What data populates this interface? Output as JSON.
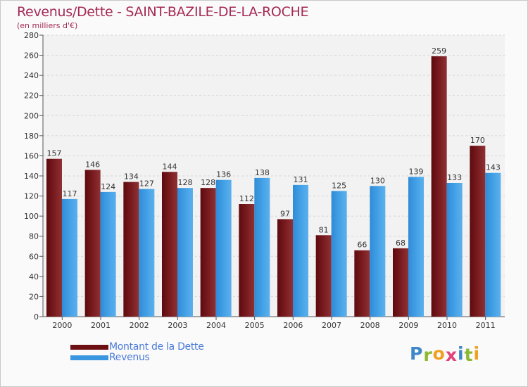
{
  "title": "Revenus/Dette - SAINT-BAZILE-DE-LA-ROCHE",
  "subtitle": "(en milliers d'€)",
  "colors": {
    "dette": "#7a1a1e",
    "revenus": "#3a96de",
    "title": "#a52a55",
    "legend_text": "#4a7bd8"
  },
  "legend": [
    {
      "label": "Montant de la Dette",
      "color": "#6b0f12"
    },
    {
      "label": "Revenus",
      "color": "#3a96de"
    }
  ],
  "logo": {
    "letters": [
      {
        "char": "P",
        "color": "#3e87c9"
      },
      {
        "char": "r",
        "color": "#8cb832"
      },
      {
        "char": "o",
        "color": "#f0a020"
      },
      {
        "char": "x",
        "color": "#e0427a"
      },
      {
        "char": "i",
        "color": "#3e87c9"
      },
      {
        "char": "t",
        "color": "#8cb832"
      },
      {
        "char": "i",
        "color": "#f0a020"
      }
    ]
  },
  "chart_data": {
    "type": "bar",
    "title": "Revenus/Dette - SAINT-BAZILE-DE-LA-ROCHE",
    "ylabel": "(en milliers d'€)",
    "xlabel": "",
    "ylim": [
      0,
      280
    ],
    "yticks": [
      0,
      20,
      40,
      60,
      80,
      100,
      120,
      140,
      160,
      180,
      200,
      220,
      240,
      260,
      280
    ],
    "grid": true,
    "legend_position": "bottom-left",
    "categories": [
      "2000",
      "2001",
      "2002",
      "2003",
      "2004",
      "2005",
      "2006",
      "2007",
      "2008",
      "2009",
      "2010",
      "2011"
    ],
    "series": [
      {
        "name": "Montant de la Dette",
        "values": [
          157,
          146,
          134,
          144,
          128,
          112,
          97,
          81,
          66,
          68,
          259,
          170
        ]
      },
      {
        "name": "Revenus",
        "values": [
          117,
          124,
          127,
          128,
          136,
          138,
          131,
          125,
          130,
          139,
          133,
          143
        ]
      }
    ]
  }
}
